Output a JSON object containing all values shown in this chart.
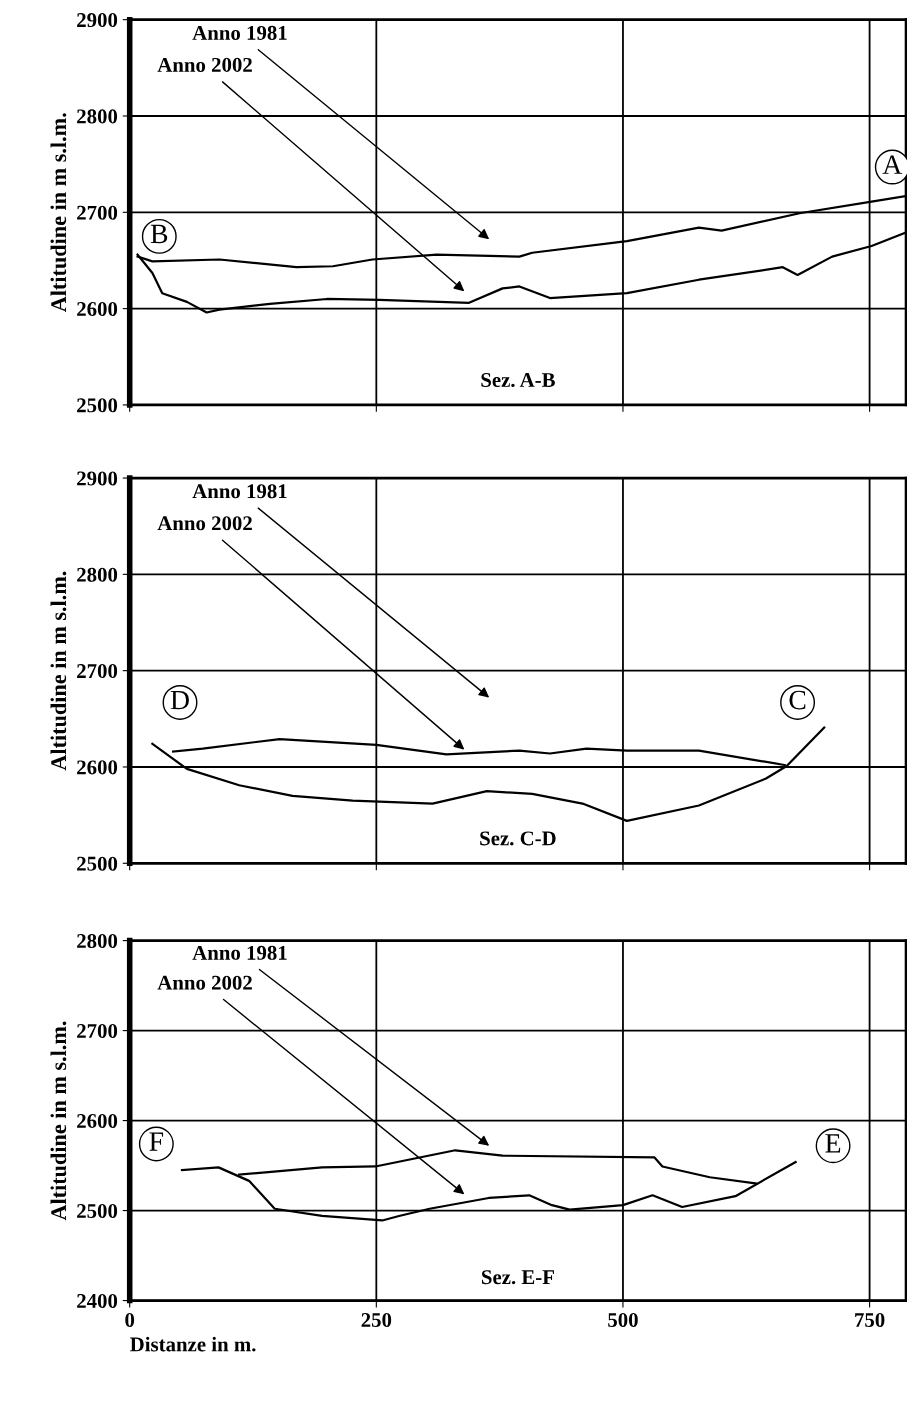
{
  "chart_data": [
    {
      "type": "line",
      "ylabel": "Altitudine in m s.l.m.",
      "xlim": [
        0,
        787
      ],
      "xticks": [
        0,
        250,
        500,
        750
      ],
      "ylim": [
        2500,
        2900
      ],
      "yticks": [
        2500,
        2600,
        2700,
        2800,
        2900
      ],
      "grid": true,
      "tick_labels": "y",
      "line_style": "solid",
      "series": [
        {
          "color": "#000000",
          "x": [
            8,
            23,
            91,
            169,
            206,
            246,
            311,
            395,
            408,
            504,
            577,
            600,
            679,
            752,
            787
          ],
          "values": [
            2654,
            2649,
            2651,
            2643,
            2644,
            2651,
            2656,
            2654,
            2658,
            2670,
            2684,
            2681,
            2699,
            2711,
            2717
          ]
        },
        {
          "color": "#000000",
          "x": [
            8,
            23,
            33,
            58,
            78,
            91,
            142,
            200,
            253,
            344,
            378,
            395,
            426,
            504,
            577,
            662,
            677,
            712,
            752,
            787
          ],
          "values": [
            2656,
            2637,
            2616,
            2607,
            2596,
            2599,
            2605,
            2610,
            2609,
            2606,
            2621,
            2623,
            2611,
            2616,
            2630,
            2643,
            2635,
            2654,
            2665,
            2679
          ]
        }
      ],
      "annotations": [
        "Anno 1981",
        "Anno 2002",
        {
          "text": "B",
          "x": 30,
          "y": 2675
        },
        {
          "text": "A",
          "x": 773,
          "y": 2747
        },
        "Sez. A-B"
      ]
    },
    {
      "type": "line",
      "ylabel": "Altitudine in m s.l.m.",
      "xlim": [
        0,
        787
      ],
      "xticks": [
        0,
        250,
        500,
        750
      ],
      "ylim": [
        2500,
        2900
      ],
      "yticks": [
        2500,
        2600,
        2700,
        2800,
        2900
      ],
      "grid": true,
      "tick_labels": "y",
      "line_style": "solid",
      "series": [
        {
          "color": "#000000",
          "x": [
            44,
            74,
            152,
            250,
            321,
            395,
            426,
            463,
            504,
            577,
            664
          ],
          "values": [
            2616,
            2619,
            2629,
            2623,
            2613,
            2617,
            2614,
            2619,
            2617,
            2617,
            2602
          ]
        },
        {
          "color": "#000000",
          "x": [
            23,
            58,
            111,
            165,
            226,
            307,
            362,
            408,
            459,
            504,
            577,
            645,
            666,
            704
          ],
          "values": [
            2624,
            2598,
            2581,
            2570,
            2565,
            2562,
            2575,
            2572,
            2562,
            2544,
            2560,
            2588,
            2601,
            2641
          ]
        }
      ],
      "annotations": [
        "Anno 1981",
        "Anno 2002",
        {
          "text": "D",
          "x": 51,
          "y": 2667
        },
        {
          "text": "C",
          "x": 677,
          "y": 2667
        },
        "Sez. C-D"
      ]
    },
    {
      "type": "line",
      "ylabel": "Altitudine in m s.l.m.",
      "xlabel": "Distanze in m.",
      "xlim": [
        0,
        787
      ],
      "xticks": [
        0,
        250,
        500,
        750
      ],
      "ylim": [
        2400,
        2800
      ],
      "yticks": [
        2400,
        2500,
        2600,
        2700,
        2800
      ],
      "grid": true,
      "line_style": "solid",
      "series": [
        {
          "color": "#000000",
          "x": [
            111,
            195,
            249,
            330,
            378,
            532,
            540,
            588,
            635
          ],
          "values": [
            2540,
            2548,
            2549,
            2567,
            2561,
            2559,
            2549,
            2537,
            2530
          ]
        },
        {
          "color": "#000000",
          "x": [
            53,
            90,
            121,
            147,
            195,
            256,
            273,
            304,
            364,
            405,
            428,
            446,
            500,
            530,
            560,
            614,
            675
          ],
          "values": [
            2545,
            2548,
            2533,
            2502,
            2494,
            2489,
            2494,
            2502,
            2514,
            2517,
            2506,
            2501,
            2506,
            2517,
            2504,
            2516,
            2554
          ]
        }
      ],
      "annotations": [
        "Anno 1981",
        "Anno 2002",
        {
          "text": "F",
          "x": 27,
          "y": 2574
        },
        {
          "text": "E",
          "x": 713,
          "y": 2572
        },
        "Sez. E-F"
      ]
    }
  ]
}
